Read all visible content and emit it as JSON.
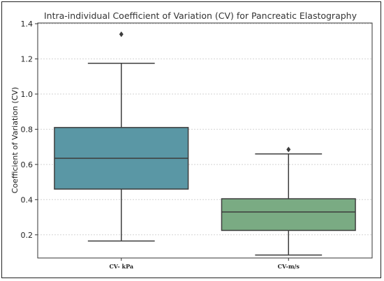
{
  "chart_data": {
    "type": "box",
    "title": "Intra-individual Coefficient of Variation (CV) for Pancreatic Elastography",
    "xlabel": "",
    "ylabel": "Coefficient of Variation (CV)",
    "ylim": [
      0.1,
      1.4
    ],
    "yticks": [
      "0.2",
      "0.4",
      "0.6",
      "0.8",
      "1.0",
      "1.2",
      "1.4"
    ],
    "grid": true,
    "categories": [
      "CV- kPa",
      "CV-m/s"
    ],
    "boxes": [
      {
        "category": "CV- kPa",
        "whisker_low": 0.165,
        "q1": 0.46,
        "median": 0.635,
        "q3": 0.81,
        "whisker_high": 1.175,
        "outliers": [
          1.34
        ],
        "color": "#5a97a5"
      },
      {
        "category": "CV-m/s",
        "whisker_low": 0.085,
        "q1": 0.225,
        "median": 0.33,
        "q3": 0.405,
        "whisker_high": 0.66,
        "outliers": [
          0.685
        ],
        "color": "#7aab83"
      }
    ]
  }
}
